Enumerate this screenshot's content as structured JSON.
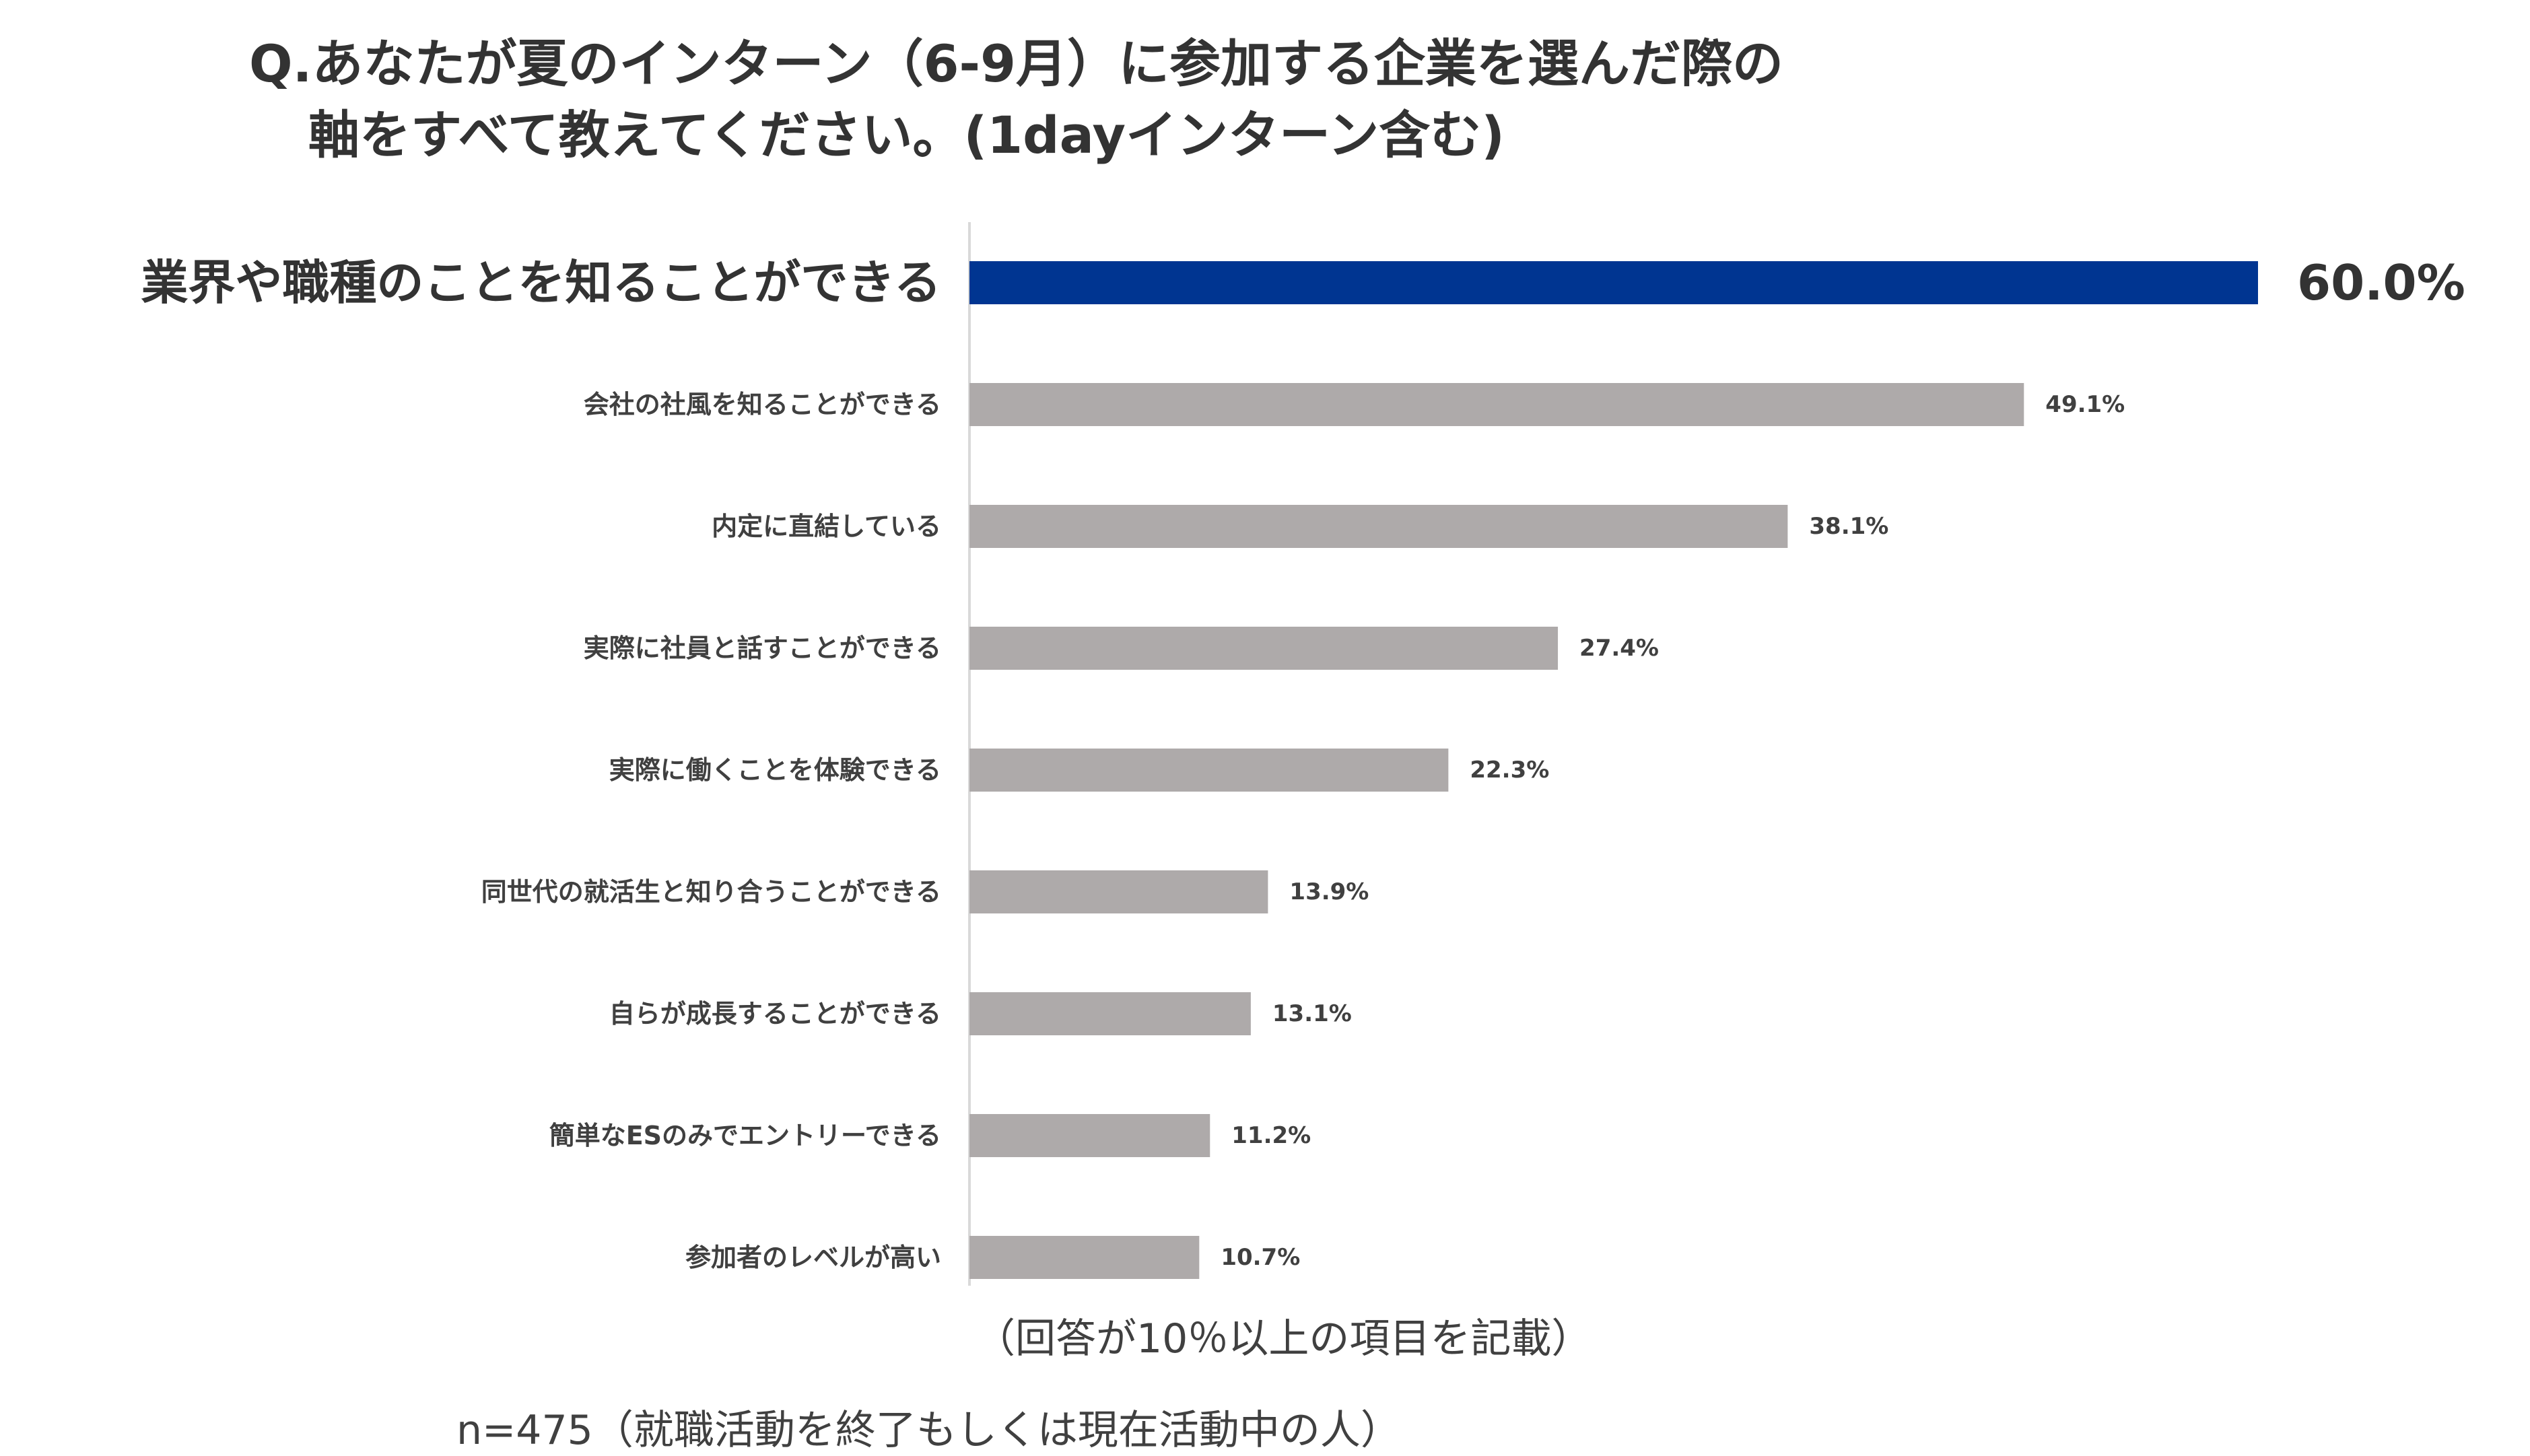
{
  "chart_data": {
    "type": "bar",
    "orientation": "horizontal",
    "title_line1": "Q.あなたが夏のインターン（6-9月）に参加する企業を選んだ際の",
    "title_line2": "軸をすべて教えてください。(1dayインターン含む)",
    "categories": [
      "業界や職種のことを知ることができる",
      "会社の社風を知ることができる",
      "内定に直結している",
      "実際に社員と話すことができる",
      "実際に働くことを体験できる",
      "同世代の就活生と知り合うことができる",
      "自らが成長することができる",
      "簡単なESのみでエントリーできる",
      "参加者のレベルが高い"
    ],
    "values": [
      60.0,
      49.1,
      38.1,
      27.4,
      22.3,
      13.9,
      13.1,
      11.2,
      10.7
    ],
    "data_labels": [
      "60.0%",
      "49.1%",
      "38.1%",
      "27.4%",
      "22.3%",
      "13.9%",
      "13.1%",
      "11.2%",
      "10.7%"
    ],
    "unit": "%",
    "xlim": [
      0,
      66
    ],
    "grid": false,
    "legend": "none",
    "highlight_index": 0,
    "colors": {
      "highlight": "#003591",
      "default": "#aeaaaa",
      "axis": "#d9d9d9",
      "label": "#404040"
    },
    "note": "（回答が10％以上の項目を記載）",
    "sample": "n=475（就職活動を終了もしくは現在活動中の人）"
  }
}
